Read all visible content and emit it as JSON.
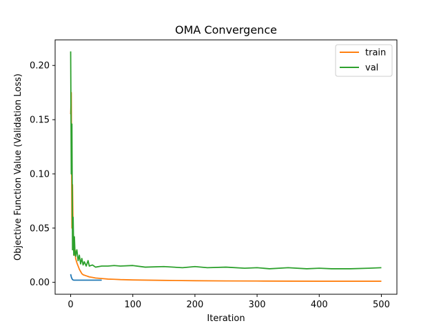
{
  "chart_data": {
    "type": "line",
    "title": "OMA Convergence",
    "xlabel": "Iteration",
    "ylabel": "Objective Function Value (Validation Loss)",
    "xlim": [
      -25,
      525
    ],
    "ylim": [
      -0.011,
      0.2236
    ],
    "x_ticks": [
      0,
      100,
      200,
      300,
      400,
      500
    ],
    "y_ticks": [
      0.0,
      0.05,
      0.1,
      0.15,
      0.2
    ],
    "y_tick_labels": [
      "0.00",
      "0.05",
      "0.10",
      "0.15",
      "0.20"
    ],
    "grid": false,
    "legend_position": "top-right",
    "series": [
      {
        "name": "",
        "color": "#1f77b4",
        "x": [
          0,
          1,
          2,
          3,
          4,
          5,
          10,
          20,
          30,
          40,
          50
        ],
        "y": [
          0.0075,
          0.005,
          0.0035,
          0.0025,
          0.0022,
          0.002,
          0.002,
          0.002,
          0.002,
          0.002,
          0.002
        ]
      },
      {
        "name": "train",
        "color": "#ff7f0e",
        "x": [
          0,
          1,
          2,
          3,
          4,
          5,
          6,
          7,
          8,
          9,
          10,
          12,
          14,
          16,
          18,
          20,
          25,
          30,
          35,
          40,
          50,
          60,
          70,
          80,
          100,
          150,
          200,
          250,
          300,
          350,
          400,
          450,
          500
        ],
        "y": [
          0.155,
          0.175,
          0.05,
          0.09,
          0.045,
          0.03,
          0.025,
          0.03,
          0.022,
          0.02,
          0.018,
          0.015,
          0.012,
          0.01,
          0.008,
          0.007,
          0.006,
          0.005,
          0.0045,
          0.004,
          0.0035,
          0.003,
          0.0028,
          0.0025,
          0.0022,
          0.0018,
          0.0015,
          0.0013,
          0.0012,
          0.0011,
          0.001,
          0.001,
          0.001
        ]
      },
      {
        "name": "val",
        "color": "#2ca02c",
        "x": [
          0,
          1,
          2,
          3,
          4,
          5,
          6,
          7,
          8,
          9,
          10,
          12,
          14,
          16,
          18,
          20,
          22,
          25,
          28,
          30,
          35,
          40,
          50,
          60,
          70,
          80,
          100,
          120,
          150,
          180,
          200,
          220,
          250,
          280,
          300,
          320,
          350,
          380,
          400,
          420,
          450,
          480,
          500
        ],
        "y": [
          0.213,
          0.1,
          0.146,
          0.03,
          0.06,
          0.025,
          0.042,
          0.027,
          0.024,
          0.028,
          0.03,
          0.02,
          0.025,
          0.017,
          0.022,
          0.016,
          0.019,
          0.015,
          0.02,
          0.015,
          0.016,
          0.014,
          0.015,
          0.015,
          0.0155,
          0.015,
          0.0155,
          0.014,
          0.0145,
          0.0135,
          0.0145,
          0.0135,
          0.014,
          0.013,
          0.0135,
          0.0125,
          0.0135,
          0.0125,
          0.013,
          0.0125,
          0.0125,
          0.013,
          0.0135
        ]
      }
    ]
  }
}
